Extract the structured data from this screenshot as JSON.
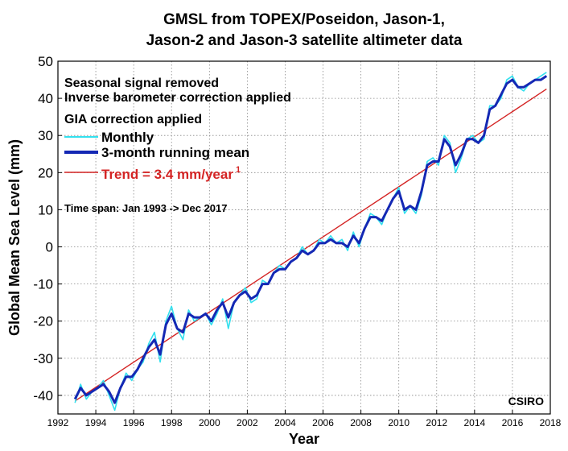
{
  "chart_data": {
    "type": "line",
    "title": [
      "GMSL from TOPEX/Poseidon, Jason-1,",
      "Jason-2 and Jason-3 satellite altimeter data"
    ],
    "xlabel": "Year",
    "ylabel": "Global Mean Sea Level (mm)",
    "xlim": [
      1992,
      2018
    ],
    "ylim": [
      -45,
      50
    ],
    "xticks": [
      1992,
      1994,
      1996,
      1998,
      2000,
      2002,
      2004,
      2006,
      2008,
      2010,
      2012,
      2014,
      2016,
      2018
    ],
    "yticks": [
      -40,
      -30,
      -20,
      -10,
      0,
      10,
      20,
      30,
      40,
      50
    ],
    "grid": true,
    "notes": [
      "Seasonal signal removed",
      "Inverse barometer correction applied",
      "GIA correction applied"
    ],
    "time_span": "Time span: Jan 1993 -> Dec 2017",
    "credit": "CSIRO",
    "legend": {
      "placement": "top-left",
      "entries": [
        {
          "label": "Monthly",
          "color": "#33e0ee"
        },
        {
          "label": "3-month running mean",
          "color": "#1428b4"
        },
        {
          "label": "Trend = 3.4 mm/year",
          "superscript": "1",
          "color": "#d42424"
        }
      ]
    },
    "series": [
      {
        "name": "Monthly",
        "x": [
          1992.9,
          1993.2,
          1993.5,
          1993.8,
          1994.1,
          1994.4,
          1994.7,
          1995.0,
          1995.3,
          1995.6,
          1995.9,
          1996.2,
          1996.5,
          1996.8,
          1997.1,
          1997.4,
          1997.7,
          1998.0,
          1998.3,
          1998.6,
          1998.9,
          1999.2,
          1999.5,
          1999.8,
          2000.1,
          2000.4,
          2000.7,
          2001.0,
          2001.3,
          2001.6,
          2001.9,
          2002.2,
          2002.5,
          2002.8,
          2003.1,
          2003.4,
          2003.7,
          2004.0,
          2004.3,
          2004.6,
          2004.9,
          2005.2,
          2005.5,
          2005.8,
          2006.1,
          2006.4,
          2006.7,
          2007.0,
          2007.3,
          2007.6,
          2007.9,
          2008.2,
          2008.5,
          2008.8,
          2009.1,
          2009.4,
          2009.7,
          2010.0,
          2010.3,
          2010.6,
          2010.9,
          2011.2,
          2011.5,
          2011.8,
          2012.1,
          2012.4,
          2012.7,
          2013.0,
          2013.3,
          2013.6,
          2013.9,
          2014.2,
          2014.5,
          2014.8,
          2015.1,
          2015.4,
          2015.7,
          2016.0,
          2016.3,
          2016.6,
          2016.9,
          2017.2,
          2017.5,
          2017.8
        ],
        "values": [
          -42,
          -37,
          -41,
          -39,
          -38,
          -36,
          -40,
          -44,
          -38,
          -34,
          -36,
          -33,
          -31,
          -26,
          -23,
          -31,
          -20,
          -16,
          -22,
          -25,
          -17,
          -20,
          -19,
          -18,
          -21,
          -18,
          -14,
          -22,
          -15,
          -13,
          -11,
          -15,
          -14,
          -9,
          -10,
          -7,
          -5,
          -6,
          -4,
          -3,
          0,
          -2,
          -1,
          2,
          1,
          3,
          1,
          2,
          -1,
          4,
          0,
          5,
          9,
          8,
          6,
          10,
          13,
          16,
          9,
          11,
          9,
          14,
          23,
          24,
          22,
          30,
          28,
          20,
          24,
          29,
          30,
          28,
          29,
          38,
          38,
          40,
          45,
          46,
          43,
          42,
          44,
          45,
          46,
          47
        ]
      },
      {
        "name": "3-month running mean",
        "x": [
          1992.9,
          1993.2,
          1993.5,
          1993.8,
          1994.1,
          1994.4,
          1994.7,
          1995.0,
          1995.3,
          1995.6,
          1995.9,
          1996.2,
          1996.5,
          1996.8,
          1997.1,
          1997.4,
          1997.7,
          1998.0,
          1998.3,
          1998.6,
          1998.9,
          1999.2,
          1999.5,
          1999.8,
          2000.1,
          2000.4,
          2000.7,
          2001.0,
          2001.3,
          2001.6,
          2001.9,
          2002.2,
          2002.5,
          2002.8,
          2003.1,
          2003.4,
          2003.7,
          2004.0,
          2004.3,
          2004.6,
          2004.9,
          2005.2,
          2005.5,
          2005.8,
          2006.1,
          2006.4,
          2006.7,
          2007.0,
          2007.3,
          2007.6,
          2007.9,
          2008.2,
          2008.5,
          2008.8,
          2009.1,
          2009.4,
          2009.7,
          2010.0,
          2010.3,
          2010.6,
          2010.9,
          2011.2,
          2011.5,
          2011.8,
          2012.1,
          2012.4,
          2012.7,
          2013.0,
          2013.3,
          2013.6,
          2013.9,
          2014.2,
          2014.5,
          2014.8,
          2015.1,
          2015.4,
          2015.7,
          2016.0,
          2016.3,
          2016.6,
          2016.9,
          2017.2,
          2017.5,
          2017.8
        ],
        "values": [
          -41,
          -38,
          -40,
          -39,
          -38,
          -37,
          -39,
          -42,
          -38,
          -35,
          -35,
          -33,
          -30,
          -27,
          -25,
          -29,
          -21,
          -18,
          -22,
          -23,
          -18,
          -19,
          -19,
          -18,
          -20,
          -17,
          -15,
          -19,
          -15,
          -13,
          -12,
          -14,
          -13,
          -10,
          -10,
          -7,
          -6,
          -6,
          -4,
          -3,
          -1,
          -2,
          -1,
          1,
          1,
          2,
          1,
          1,
          0,
          3,
          1,
          5,
          8,
          8,
          7,
          10,
          13,
          15,
          10,
          11,
          10,
          15,
          22,
          23,
          23,
          29,
          27,
          22,
          25,
          29,
          29,
          28,
          30,
          37,
          38,
          41,
          44,
          45,
          43,
          43,
          44,
          45,
          45,
          46
        ]
      },
      {
        "name": "Trend = 3.4 mm/year",
        "x": [
          1992.9,
          2017.8
        ],
        "values": [
          -41.5,
          42.5
        ]
      }
    ]
  }
}
